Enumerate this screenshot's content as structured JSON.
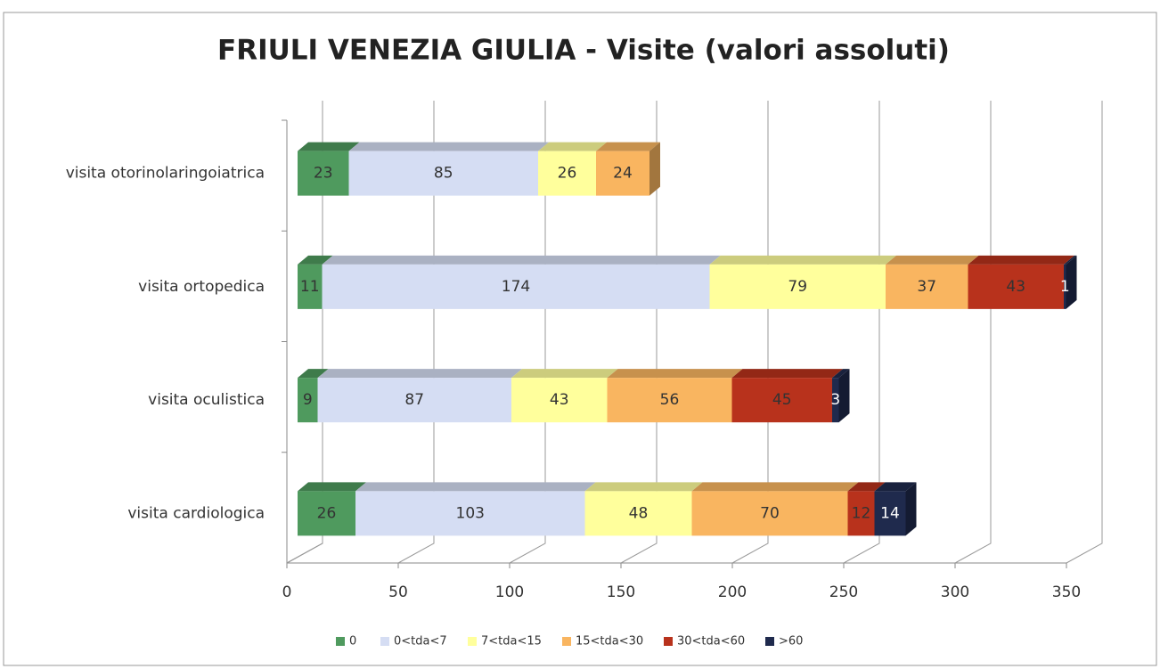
{
  "chart_data": {
    "type": "bar3d_stacked_horizontal",
    "title": "FRIULI VENEZIA GIULIA - Visite (valori assoluti)",
    "categories": [
      "visita otorinolaringoiatrica",
      "visita ortopedica",
      "visita oculistica",
      "visita cardiologica"
    ],
    "series": [
      {
        "name": "0",
        "color": "#4f9a5e",
        "values": [
          23,
          11,
          9,
          26
        ]
      },
      {
        "name": "0<tda<7",
        "color": "#d5ddf3",
        "values": [
          85,
          174,
          87,
          103
        ]
      },
      {
        "name": "7<tda<15",
        "color": "#ffff9c",
        "values": [
          26,
          79,
          43,
          48
        ]
      },
      {
        "name": "15<tda<30",
        "color": "#f9b560",
        "values": [
          24,
          37,
          56,
          70
        ]
      },
      {
        "name": "30<tda<60",
        "color": "#b8321c",
        "values": [
          null,
          43,
          45,
          12
        ]
      },
      {
        "name": ">60",
        "color": "#1f2a4d",
        "values": [
          null,
          1,
          3,
          14
        ]
      }
    ],
    "xlim": [
      0,
      350
    ],
    "xticks": [
      0,
      50,
      100,
      150,
      200,
      250,
      300,
      350
    ],
    "grid": true,
    "legend": "bottom"
  }
}
